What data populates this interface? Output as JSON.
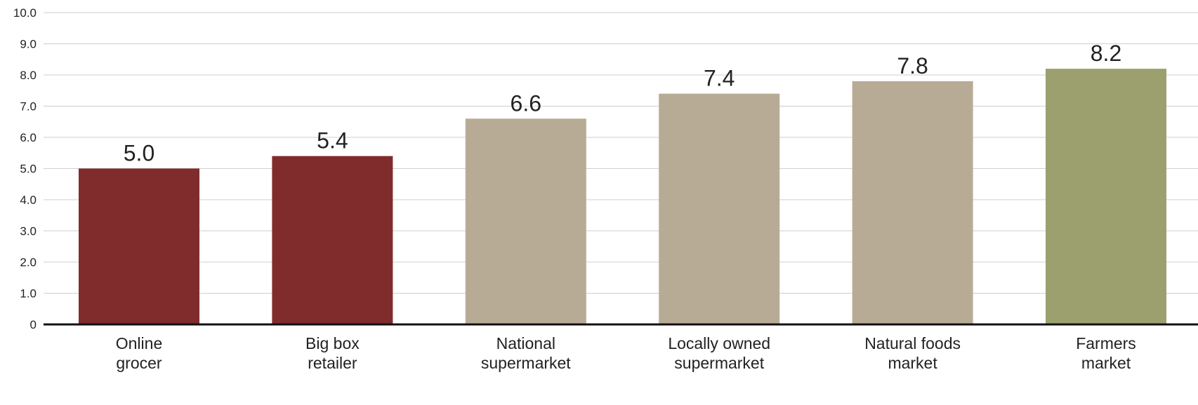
{
  "chart_data": {
    "type": "bar",
    "title": "",
    "xlabel": "",
    "ylabel": "",
    "ylim": [
      0,
      10
    ],
    "grid": true,
    "y_ticks": [
      "0",
      "1.0",
      "2.0",
      "3.0",
      "4.0",
      "5.0",
      "6.0",
      "7.0",
      "8.0",
      "9.0",
      "10.0"
    ],
    "categories": [
      [
        "Online",
        "grocer"
      ],
      [
        "Big box",
        "retailer"
      ],
      [
        "National",
        "supermarket"
      ],
      [
        "Locally owned",
        "supermarket"
      ],
      [
        "Natural foods",
        "market"
      ],
      [
        "Farmers",
        "market"
      ]
    ],
    "values": [
      5.0,
      5.4,
      6.6,
      7.4,
      7.8,
      8.2
    ],
    "data_labels": [
      "5.0",
      "5.4",
      "6.6",
      "7.4",
      "7.8",
      "8.2"
    ],
    "bar_colors": [
      "#812c2c",
      "#812c2c",
      "#b8ab95",
      "#b8ab95",
      "#b8ab95",
      "#9ca06f"
    ]
  }
}
